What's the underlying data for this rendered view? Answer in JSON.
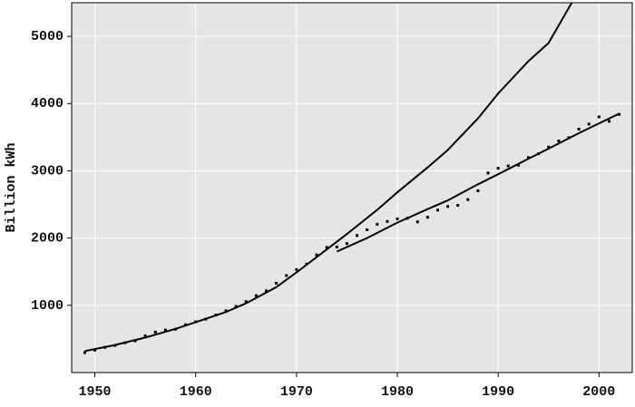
{
  "chart_data": {
    "type": "scatter",
    "y_label": "Billion kWh",
    "xlim": [
      1947.7,
      2003.3
    ],
    "ylim": [
      0,
      5500
    ],
    "xticks": [
      1950,
      1960,
      1970,
      1980,
      1990,
      2000
    ],
    "yticks": [
      1000,
      2000,
      3000,
      4000,
      5000
    ],
    "grid": true,
    "series": [
      {
        "style": "points",
        "color": "#000000",
        "x": [
          1949,
          1950,
          1951,
          1952,
          1953,
          1954,
          1955,
          1956,
          1957,
          1958,
          1959,
          1960,
          1961,
          1962,
          1963,
          1964,
          1965,
          1966,
          1967,
          1968,
          1969,
          1970,
          1971,
          1972,
          1973,
          1974,
          1975,
          1976,
          1977,
          1978,
          1979,
          1980,
          1981,
          1982,
          1983,
          1984,
          1985,
          1986,
          1987,
          1988,
          1989,
          1990,
          1991,
          1992,
          1993,
          1994,
          1995,
          1996,
          1997,
          1998,
          1999,
          2000,
          2001,
          2002
        ],
        "values": [
          296,
          334,
          375,
          403,
          443,
          472,
          547,
          601,
          632,
          645,
          710,
          755,
          794,
          856,
          917,
          984,
          1055,
          1144,
          1214,
          1329,
          1442,
          1532,
          1613,
          1750,
          1861,
          1867,
          1918,
          2038,
          2124,
          2206,
          2247,
          2286,
          2295,
          2241,
          2310,
          2416,
          2470,
          2487,
          2572,
          2704,
          2967,
          3038,
          3073,
          3084,
          3197,
          3254,
          3353,
          3444,
          3492,
          3620,
          3695,
          3802,
          3737,
          3839
        ]
      },
      {
        "style": "line",
        "color": "#000000",
        "x": [
          1949,
          1952,
          1955,
          1958,
          1960,
          1963,
          1965,
          1968,
          1970,
          1973,
          1975,
          1978,
          1980,
          1983,
          1985,
          1988,
          1990,
          1993,
          1995,
          1997.3
        ],
        "values": [
          320,
          410,
          520,
          650,
          750,
          900,
          1030,
          1270,
          1490,
          1830,
          2060,
          2420,
          2680,
          3050,
          3310,
          3780,
          4150,
          4630,
          4900,
          5500
        ]
      },
      {
        "style": "line",
        "color": "#000000",
        "x": [
          1974,
          1977,
          1980,
          1983,
          1985,
          1988,
          1990,
          1993,
          1995,
          1998,
          2002
        ],
        "values": [
          1800,
          2000,
          2230,
          2430,
          2560,
          2800,
          2950,
          3180,
          3330,
          3560,
          3850
        ]
      }
    ]
  }
}
